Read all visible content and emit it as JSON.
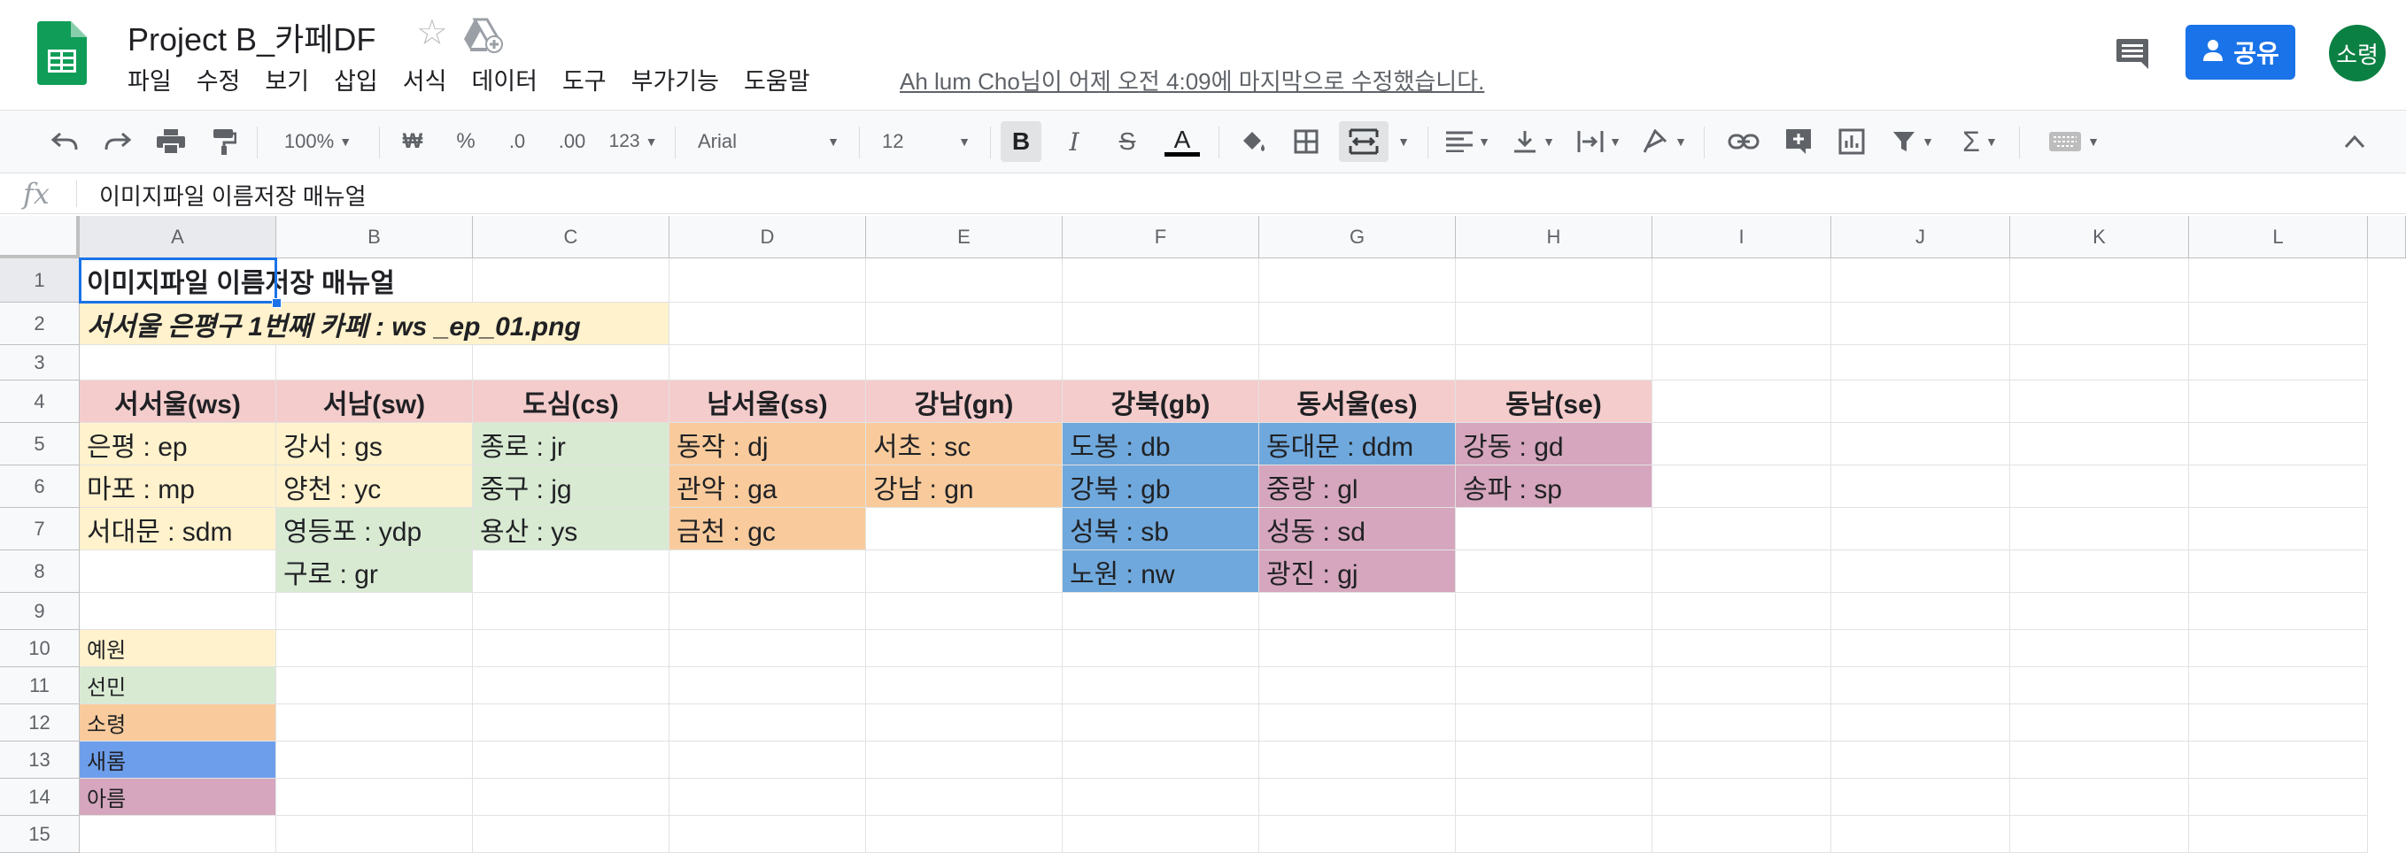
{
  "app": {
    "doc_title": "Project B_카페DF",
    "menu": [
      "파일",
      "수정",
      "보기",
      "삽입",
      "서식",
      "데이터",
      "도구",
      "부가기능",
      "도움말"
    ],
    "last_edit": "Ah lum Cho님이 어제 오전 4:09에 마지막으로 수정했습니다.",
    "share_label": "공유",
    "avatar_label": "소령",
    "brand_color": "#0f9d58",
    "share_color": "#1a73e8"
  },
  "toolbar": {
    "zoom": "100%",
    "currency": "₩",
    "percent": "%",
    "dec_decrease": ".0",
    "dec_increase": ".00",
    "format_more": "123",
    "font": "Arial",
    "font_size": "12",
    "bold": "B",
    "italic": "I",
    "strike": "S",
    "text_color": "A"
  },
  "formula_bar": {
    "fx": "fx",
    "content": "이미지파일 이름저장 매뉴얼"
  },
  "columns": [
    "A",
    "B",
    "C",
    "D",
    "E",
    "F",
    "G",
    "H",
    "I",
    "J",
    "K",
    "L"
  ],
  "rows": [
    "1",
    "2",
    "3",
    "4",
    "5",
    "6",
    "7",
    "8",
    "9",
    "10",
    "11",
    "12",
    "13",
    "14",
    "15"
  ],
  "colors": {
    "yellow": "#fff2cc",
    "green": "#d9ead3",
    "orange": "#f9cb9c",
    "blue": "#6fa8dc",
    "purple": "#d5a6bd",
    "pink": "#f4cccc",
    "blue_legend": "#6d9eeb"
  },
  "cells": {
    "A1": "이미지파일 이름저장 매뉴얼",
    "A2": "서서울 은평구 1번째 카페 : ws _ep_01.png",
    "A4": "서서울(ws)",
    "B4": "서남(sw)",
    "C4": "도심(cs)",
    "D4": "남서울(ss)",
    "E4": "강남(gn)",
    "F4": "강북(gb)",
    "G4": "동서울(es)",
    "H4": "동남(se)",
    "A5": "은평 : ep",
    "B5": "강서 : gs",
    "C5": "종로 : jr",
    "D5": "동작 : dj",
    "E5": "서초 : sc",
    "F5": "도봉 : db",
    "G5": "동대문 : ddm",
    "H5": "강동 : gd",
    "A6": "마포 : mp",
    "B6": "양천 : yc",
    "C6": "중구 : jg",
    "D6": "관악 : ga",
    "E6": "강남 : gn",
    "F6": "강북 : gb",
    "G6": "중랑 : gl",
    "H6": "송파 : sp",
    "A7": "서대문 : sdm",
    "B7": "영등포 : ydp",
    "C7": "용산 : ys",
    "D7": "금천 : gc",
    "F7": "성북 : sb",
    "G7": "성동 : sd",
    "B8": "구로 : gr",
    "F8": "노원 : nw",
    "G8": "광진 : gj",
    "A10": "예원",
    "A11": "선민",
    "A12": "소령",
    "A13": "새롬",
    "A14": "아름"
  }
}
